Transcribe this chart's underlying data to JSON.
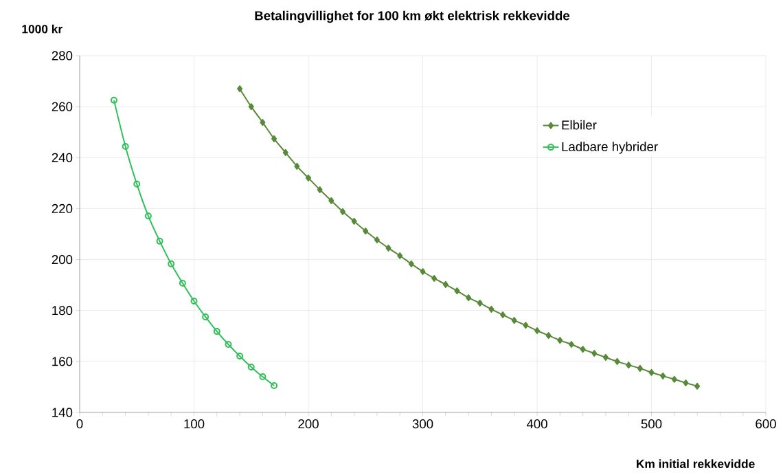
{
  "chart_data": {
    "type": "line",
    "title": "Betalingvillighet for 100 km økt elektrisk rekkevidde",
    "xlabel": "Km initial rekkevidde",
    "ylabel": "1000 kr",
    "xlim": [
      0,
      600
    ],
    "xticks": [
      0,
      100,
      200,
      300,
      400,
      500,
      600
    ],
    "ylim": [
      140,
      280
    ],
    "yticks": [
      140,
      160,
      180,
      200,
      220,
      240,
      260,
      280
    ],
    "grid": true,
    "legend": "top right",
    "line_style": "solid",
    "series": [
      {
        "name": "Elbiler",
        "color": "#588a3a",
        "marker": "diamond",
        "x": [
          140,
          150,
          160,
          170,
          180,
          190,
          200,
          210,
          220,
          230,
          240,
          250,
          260,
          270,
          280,
          290,
          300,
          310,
          320,
          330,
          340,
          350,
          360,
          370,
          380,
          390,
          400,
          410,
          420,
          430,
          440,
          450,
          460,
          470,
          480,
          490,
          500,
          510,
          520,
          530,
          540
        ],
        "values": [
          267,
          260,
          253.8,
          247.4,
          242,
          236.6,
          232,
          227.4,
          223.1,
          218.8,
          215,
          211.2,
          207.7,
          204.5,
          201.5,
          198.3,
          195.3,
          192.6,
          190.2,
          187.7,
          185,
          182.9,
          180.5,
          178.3,
          176.1,
          174.2,
          172.1,
          170.2,
          168.3,
          166.7,
          164.8,
          163.2,
          161.6,
          160,
          158.6,
          157.3,
          155.7,
          154.3,
          153,
          151.6,
          150.3
        ]
      },
      {
        "name": "Ladbare hybrider",
        "color": "#2fc05a",
        "marker": "circle",
        "x": [
          30,
          40,
          50,
          60,
          70,
          80,
          90,
          100,
          110,
          120,
          130,
          140,
          150,
          160,
          170
        ],
        "values": [
          262.5,
          244.4,
          229.6,
          217.1,
          207.2,
          198.3,
          190.7,
          183.7,
          177.5,
          171.8,
          166.7,
          162.1,
          157.8,
          154,
          150.5
        ]
      }
    ]
  }
}
